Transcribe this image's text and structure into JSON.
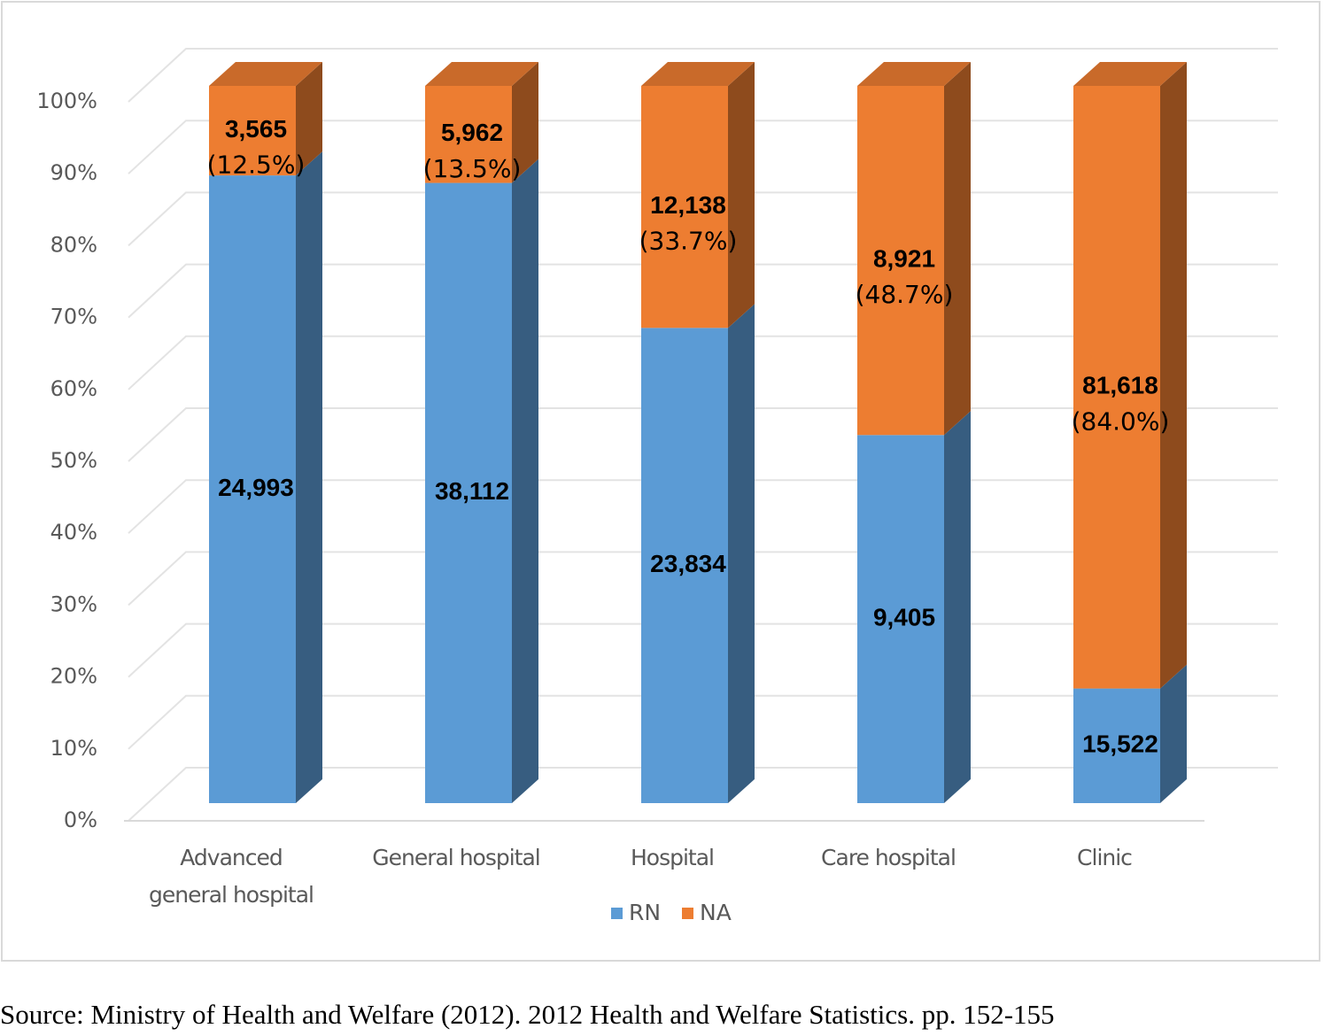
{
  "chart_data": {
    "type": "bar",
    "stacking": "percent",
    "categories": [
      "Advanced general hospital",
      "General hospital",
      "Hospital",
      "Care hospital",
      "Clinic"
    ],
    "series": [
      {
        "name": "RN",
        "color": "#5b9bd5",
        "values": [
          24993,
          38112,
          23834,
          9405,
          15522
        ],
        "value_labels": [
          "24,993",
          "38,112",
          "23,834",
          "9,405",
          "15,522"
        ]
      },
      {
        "name": "NA",
        "color": "#ed7d31",
        "values": [
          3565,
          5962,
          12138,
          8921,
          81618
        ],
        "value_labels": [
          "3,565",
          "5,962",
          "12,138",
          "8,921",
          "81,618"
        ],
        "share_labels": [
          "(12.5%)",
          "(13.5%)",
          "(33.7%)",
          "(48.7%)",
          "(84.0%)"
        ]
      }
    ],
    "ylim": [
      0,
      100
    ],
    "yticks": [
      {
        "value": 0,
        "label": "0%"
      },
      {
        "value": 10,
        "label": "10%"
      },
      {
        "value": 20,
        "label": "20%"
      },
      {
        "value": 30,
        "label": "30%"
      },
      {
        "value": 40,
        "label": "40%"
      },
      {
        "value": 50,
        "label": "50%"
      },
      {
        "value": 60,
        "label": "60%"
      },
      {
        "value": 70,
        "label": "70%"
      },
      {
        "value": 80,
        "label": "80%"
      },
      {
        "value": 90,
        "label": "90%"
      },
      {
        "value": 100,
        "label": "100%"
      }
    ],
    "grid": true,
    "legend": "bottom",
    "source": "Source: Ministry of Health and Welfare (2012). 2012 Health and Welfare Statistics. pp. 152-155"
  }
}
